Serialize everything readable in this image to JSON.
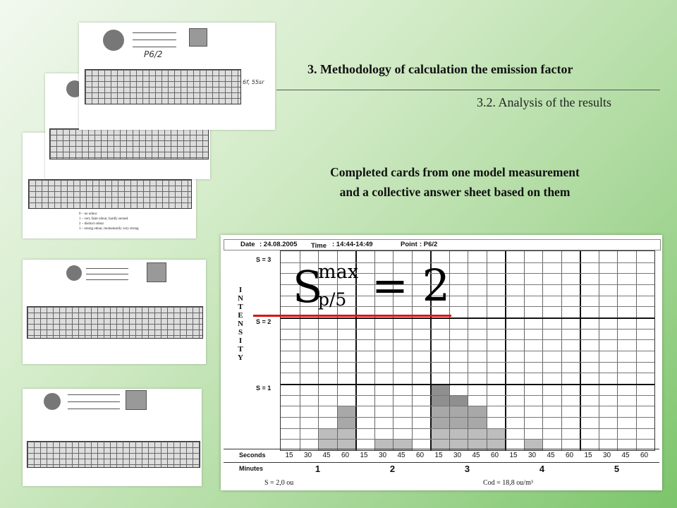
{
  "slide": {
    "section_title": "3. Methodology of calculation the emission factor",
    "subsection_title": "3.2. Analysis of the results",
    "caption_line1": "Completed cards from one model measurement",
    "caption_line2": "and a collective answer sheet based on them"
  },
  "cards": {
    "card1": {
      "handwriting": "P6/2",
      "margin_note": "6f, 55sr"
    },
    "legend": [
      "0 – no odour",
      "1 – very faint odour, hardly sensed",
      "2 – distinct odour",
      "3 – strong odour, momentarily very strong"
    ]
  },
  "sheet": {
    "date_label": "Date",
    "date_value": ": 24.08.2005",
    "time_label": "Time",
    "time_value": ": 14:44-14:49",
    "point_label": "Point",
    "point_value": ": P6/2",
    "intensity_label": "INTENSITY",
    "levels": [
      "S = 3",
      "S = 2",
      "S = 1"
    ],
    "seconds_label": "Seconds",
    "minutes_label": "Minutes",
    "seconds": [
      "15",
      "30",
      "45",
      "60",
      "15",
      "30",
      "45",
      "60",
      "15",
      "30",
      "45",
      "60",
      "15",
      "30",
      "45",
      "60",
      "15",
      "30",
      "45",
      "60"
    ],
    "minutes": [
      "1",
      "2",
      "3",
      "4",
      "5"
    ],
    "footer_left": "S  = 2,0 ou",
    "footer_right": "Cod  = 18,8 ou/m³",
    "formula": {
      "base": "S",
      "sup": "max",
      "sub": "p/5",
      "rhs": "= 2"
    },
    "bar_heights": [
      0,
      0,
      2,
      4,
      0,
      1,
      1,
      0,
      6,
      5,
      4,
      2,
      0,
      1,
      0,
      0,
      0,
      0,
      0,
      0
    ]
  }
}
